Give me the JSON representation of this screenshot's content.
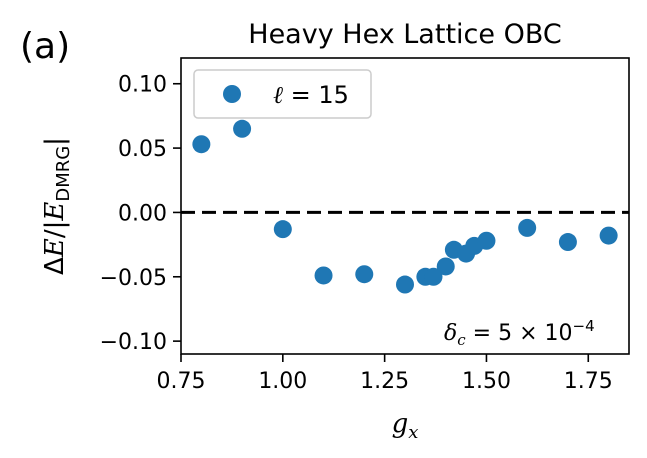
{
  "panel_label": "(a)",
  "chart_data": {
    "type": "scatter",
    "title": "Heavy Hex Lattice OBC",
    "xlabel": "g_x",
    "ylabel": "ΔE/|E_DMRG|",
    "xlim": [
      0.75,
      1.85
    ],
    "ylim": [
      -0.11,
      0.12
    ],
    "xticks": [
      "0.75",
      "1.00",
      "1.25",
      "1.50",
      "1.75"
    ],
    "yticks": [
      "0.10",
      "0.05",
      "0.00",
      "−0.05",
      "−0.10"
    ],
    "grid": false,
    "legend_position": "top-left",
    "series": [
      {
        "name": "ℓ = 15",
        "color": "#1f77b4",
        "points": [
          {
            "x": 0.8,
            "y": 0.053
          },
          {
            "x": 0.9,
            "y": 0.065
          },
          {
            "x": 1.0,
            "y": -0.013
          },
          {
            "x": 1.1,
            "y": -0.049
          },
          {
            "x": 1.2,
            "y": -0.048
          },
          {
            "x": 1.3,
            "y": -0.056
          },
          {
            "x": 1.35,
            "y": -0.05
          },
          {
            "x": 1.37,
            "y": -0.05
          },
          {
            "x": 1.4,
            "y": -0.042
          },
          {
            "x": 1.42,
            "y": -0.029
          },
          {
            "x": 1.45,
            "y": -0.032
          },
          {
            "x": 1.47,
            "y": -0.026
          },
          {
            "x": 1.5,
            "y": -0.022
          },
          {
            "x": 1.6,
            "y": -0.012
          },
          {
            "x": 1.7,
            "y": -0.023
          },
          {
            "x": 1.8,
            "y": -0.018
          }
        ]
      }
    ],
    "reference_line": {
      "y": 0.0,
      "style": "dashed",
      "color": "#000000"
    },
    "annotation": "δ_c = 5 × 10^-4"
  }
}
